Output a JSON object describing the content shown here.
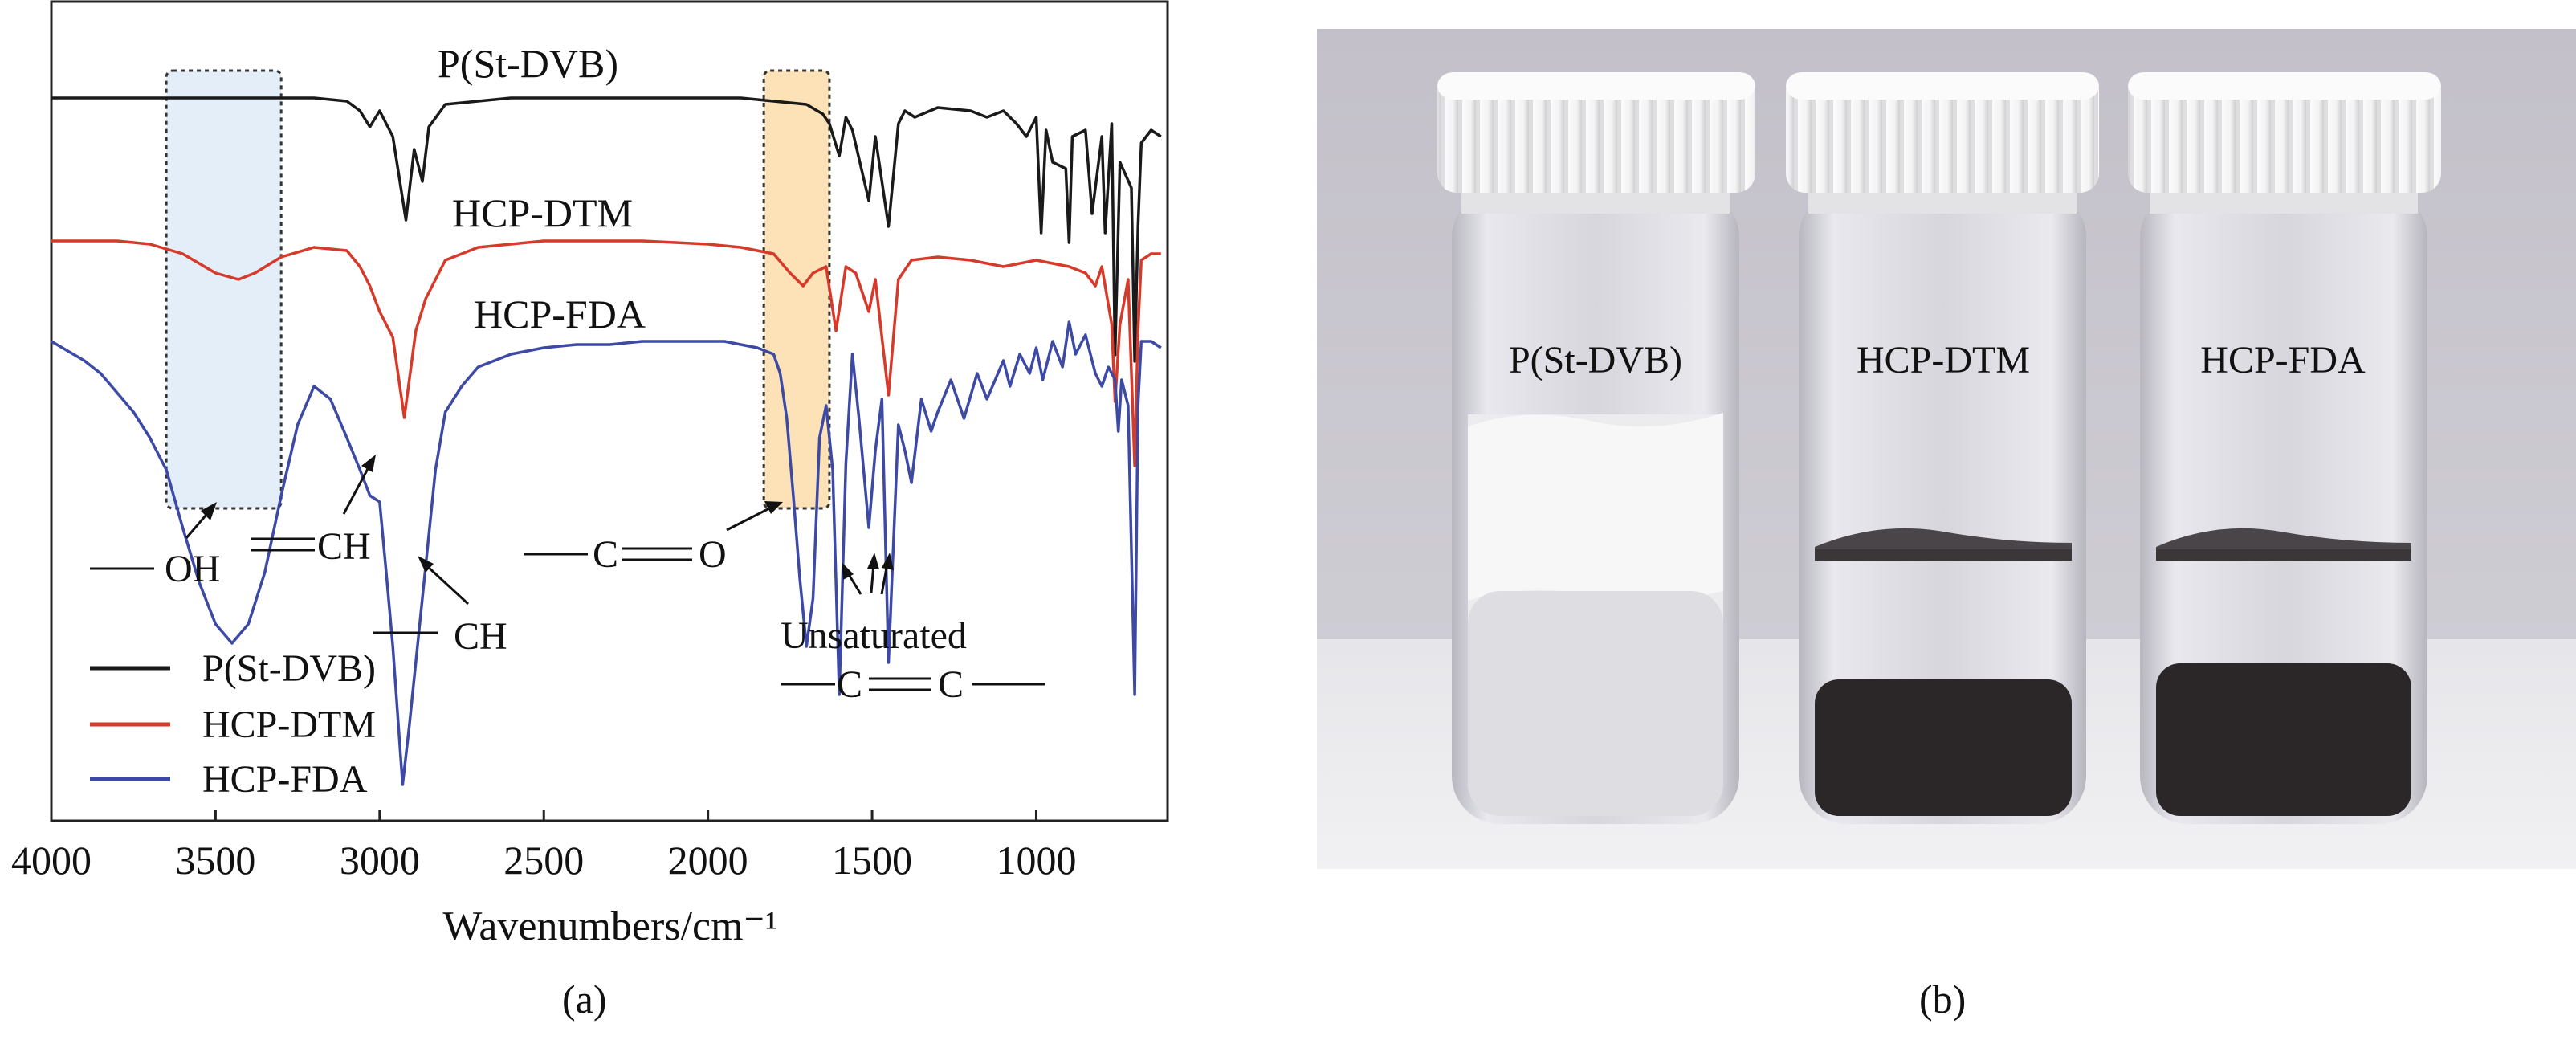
{
  "chart_data": {
    "type": "line",
    "xlabel": "Wavenumbers/cm⁻¹",
    "xlim": [
      4000,
      600
    ],
    "ticks": [
      4000,
      3500,
      3000,
      2500,
      2000,
      1500,
      1000
    ],
    "series": [
      {
        "name": "P(St-DVB)",
        "color": "#1a1a1a",
        "points": [
          [
            4000,
            0
          ],
          [
            3800,
            0
          ],
          [
            3600,
            0
          ],
          [
            3400,
            0
          ],
          [
            3200,
            0
          ],
          [
            3100,
            -1
          ],
          [
            3060,
            -4
          ],
          [
            3030,
            -9
          ],
          [
            3000,
            -4
          ],
          [
            2960,
            -12
          ],
          [
            2920,
            -38
          ],
          [
            2895,
            -16
          ],
          [
            2870,
            -26
          ],
          [
            2850,
            -9
          ],
          [
            2800,
            -2
          ],
          [
            2600,
            0
          ],
          [
            2400,
            0
          ],
          [
            2200,
            0
          ],
          [
            2000,
            0
          ],
          [
            1900,
            0
          ],
          [
            1800,
            -1
          ],
          [
            1700,
            -2
          ],
          [
            1650,
            -5
          ],
          [
            1630,
            -8
          ],
          [
            1600,
            -18
          ],
          [
            1580,
            -6
          ],
          [
            1560,
            -10
          ],
          [
            1510,
            -32
          ],
          [
            1490,
            -12
          ],
          [
            1450,
            -40
          ],
          [
            1420,
            -8
          ],
          [
            1400,
            -4
          ],
          [
            1370,
            -6
          ],
          [
            1300,
            -3
          ],
          [
            1200,
            -4
          ],
          [
            1150,
            -6
          ],
          [
            1100,
            -4
          ],
          [
            1060,
            -8
          ],
          [
            1030,
            -12
          ],
          [
            1000,
            -6
          ],
          [
            985,
            -42
          ],
          [
            970,
            -10
          ],
          [
            950,
            -20
          ],
          [
            910,
            -22
          ],
          [
            900,
            -45
          ],
          [
            890,
            -12
          ],
          [
            850,
            -10
          ],
          [
            830,
            -36
          ],
          [
            800,
            -12
          ],
          [
            790,
            -42
          ],
          [
            770,
            -8
          ],
          [
            760,
            -80
          ],
          [
            745,
            -20
          ],
          [
            710,
            -28
          ],
          [
            700,
            -82
          ],
          [
            690,
            -40
          ],
          [
            680,
            -14
          ],
          [
            650,
            -10
          ],
          [
            620,
            -12
          ]
        ]
      },
      {
        "name": "HCP-DTM",
        "color": "#d63a2a",
        "points": [
          [
            4000,
            0
          ],
          [
            3800,
            0
          ],
          [
            3700,
            -1
          ],
          [
            3600,
            -4
          ],
          [
            3500,
            -10
          ],
          [
            3430,
            -12
          ],
          [
            3380,
            -10
          ],
          [
            3300,
            -5
          ],
          [
            3200,
            -2
          ],
          [
            3100,
            -3
          ],
          [
            3060,
            -8
          ],
          [
            3030,
            -14
          ],
          [
            3000,
            -22
          ],
          [
            2960,
            -30
          ],
          [
            2925,
            -55
          ],
          [
            2890,
            -28
          ],
          [
            2860,
            -18
          ],
          [
            2800,
            -6
          ],
          [
            2700,
            -2
          ],
          [
            2500,
            0
          ],
          [
            2200,
            0
          ],
          [
            2000,
            -1
          ],
          [
            1900,
            -2
          ],
          [
            1800,
            -4
          ],
          [
            1750,
            -10
          ],
          [
            1710,
            -14
          ],
          [
            1680,
            -10
          ],
          [
            1640,
            -8
          ],
          [
            1610,
            -28
          ],
          [
            1580,
            -8
          ],
          [
            1550,
            -10
          ],
          [
            1510,
            -22
          ],
          [
            1490,
            -12
          ],
          [
            1450,
            -48
          ],
          [
            1420,
            -12
          ],
          [
            1380,
            -6
          ],
          [
            1300,
            -5
          ],
          [
            1200,
            -6
          ],
          [
            1100,
            -8
          ],
          [
            1000,
            -6
          ],
          [
            900,
            -8
          ],
          [
            850,
            -10
          ],
          [
            820,
            -14
          ],
          [
            800,
            -8
          ],
          [
            770,
            -26
          ],
          [
            760,
            -50
          ],
          [
            745,
            -26
          ],
          [
            720,
            -12
          ],
          [
            700,
            -70
          ],
          [
            690,
            -28
          ],
          [
            680,
            -6
          ],
          [
            650,
            -4
          ],
          [
            620,
            -4
          ]
        ]
      },
      {
        "name": "HCP-FDA",
        "color": "#3d4aa5",
        "points": [
          [
            4000,
            0
          ],
          [
            3950,
            -3
          ],
          [
            3900,
            -6
          ],
          [
            3850,
            -10
          ],
          [
            3800,
            -16
          ],
          [
            3750,
            -22
          ],
          [
            3700,
            -30
          ],
          [
            3650,
            -40
          ],
          [
            3600,
            -58
          ],
          [
            3550,
            -75
          ],
          [
            3500,
            -88
          ],
          [
            3450,
            -94
          ],
          [
            3400,
            -88
          ],
          [
            3350,
            -72
          ],
          [
            3300,
            -48
          ],
          [
            3250,
            -26
          ],
          [
            3200,
            -14
          ],
          [
            3150,
            -18
          ],
          [
            3100,
            -30
          ],
          [
            3060,
            -40
          ],
          [
            3030,
            -48
          ],
          [
            3000,
            -50
          ],
          [
            2980,
            -72
          ],
          [
            2960,
            -95
          ],
          [
            2930,
            -138
          ],
          [
            2910,
            -120
          ],
          [
            2890,
            -100
          ],
          [
            2860,
            -70
          ],
          [
            2830,
            -40
          ],
          [
            2800,
            -22
          ],
          [
            2750,
            -14
          ],
          [
            2700,
            -8
          ],
          [
            2600,
            -4
          ],
          [
            2500,
            -2
          ],
          [
            2400,
            -1
          ],
          [
            2300,
            -1
          ],
          [
            2200,
            0
          ],
          [
            2100,
            0
          ],
          [
            2000,
            0
          ],
          [
            1950,
            0
          ],
          [
            1900,
            -1
          ],
          [
            1850,
            -2
          ],
          [
            1800,
            -4
          ],
          [
            1780,
            -10
          ],
          [
            1760,
            -24
          ],
          [
            1740,
            -48
          ],
          [
            1720,
            -74
          ],
          [
            1700,
            -95
          ],
          [
            1680,
            -80
          ],
          [
            1660,
            -30
          ],
          [
            1640,
            -20
          ],
          [
            1620,
            -40
          ],
          [
            1600,
            -110
          ],
          [
            1580,
            -38
          ],
          [
            1560,
            -4
          ],
          [
            1540,
            -24
          ],
          [
            1510,
            -58
          ],
          [
            1490,
            -34
          ],
          [
            1470,
            -18
          ],
          [
            1450,
            -100
          ],
          [
            1420,
            -26
          ],
          [
            1400,
            -34
          ],
          [
            1380,
            -44
          ],
          [
            1350,
            -18
          ],
          [
            1320,
            -28
          ],
          [
            1300,
            -22
          ],
          [
            1260,
            -12
          ],
          [
            1220,
            -24
          ],
          [
            1180,
            -10
          ],
          [
            1150,
            -18
          ],
          [
            1100,
            -6
          ],
          [
            1080,
            -14
          ],
          [
            1050,
            -4
          ],
          [
            1020,
            -10
          ],
          [
            1000,
            -2
          ],
          [
            980,
            -12
          ],
          [
            950,
            0
          ],
          [
            920,
            -8
          ],
          [
            900,
            6
          ],
          [
            880,
            -4
          ],
          [
            850,
            2
          ],
          [
            820,
            -10
          ],
          [
            800,
            -14
          ],
          [
            780,
            -8
          ],
          [
            760,
            -12
          ],
          [
            750,
            -28
          ],
          [
            740,
            -12
          ],
          [
            720,
            -20
          ],
          [
            700,
            -110
          ],
          [
            690,
            -20
          ],
          [
            680,
            0
          ],
          [
            650,
            0
          ],
          [
            620,
            -2
          ]
        ]
      }
    ],
    "curve_labels": [
      "P(St-DVB)",
      "HCP-DTM",
      "HCP-FDA"
    ],
    "annotations": {
      "oh": "OH",
      "ch_double": "CH",
      "ch_single": "CH",
      "co_c": "C",
      "co_o": "O",
      "unsat": "Unsaturated",
      "cc_c1": "C",
      "cc_c2": "C"
    },
    "highlights": [
      {
        "from": 3650,
        "to": 3300,
        "color": "#e4eef8"
      },
      {
        "from": 1830,
        "to": 1630,
        "color": "#fce2b6"
      }
    ],
    "legend": {
      "position": "bottom-left",
      "entries": [
        {
          "label": "P(St-DVB)",
          "color": "#1a1a1a"
        },
        {
          "label": "HCP-DTM",
          "color": "#d63a2a"
        },
        {
          "label": "HCP-FDA",
          "color": "#3d4aa5"
        }
      ]
    },
    "panel_label": "(a)"
  },
  "photo": {
    "panel_label": "(b)",
    "vial_labels": [
      "P(St-DVB)",
      "HCP-DTM",
      "HCP-FDA"
    ],
    "colors": {
      "background": "#c9c6cf",
      "floor": "#e9e9ec",
      "cap": "#f3f3f3",
      "black_particles": "#2b2627"
    }
  }
}
